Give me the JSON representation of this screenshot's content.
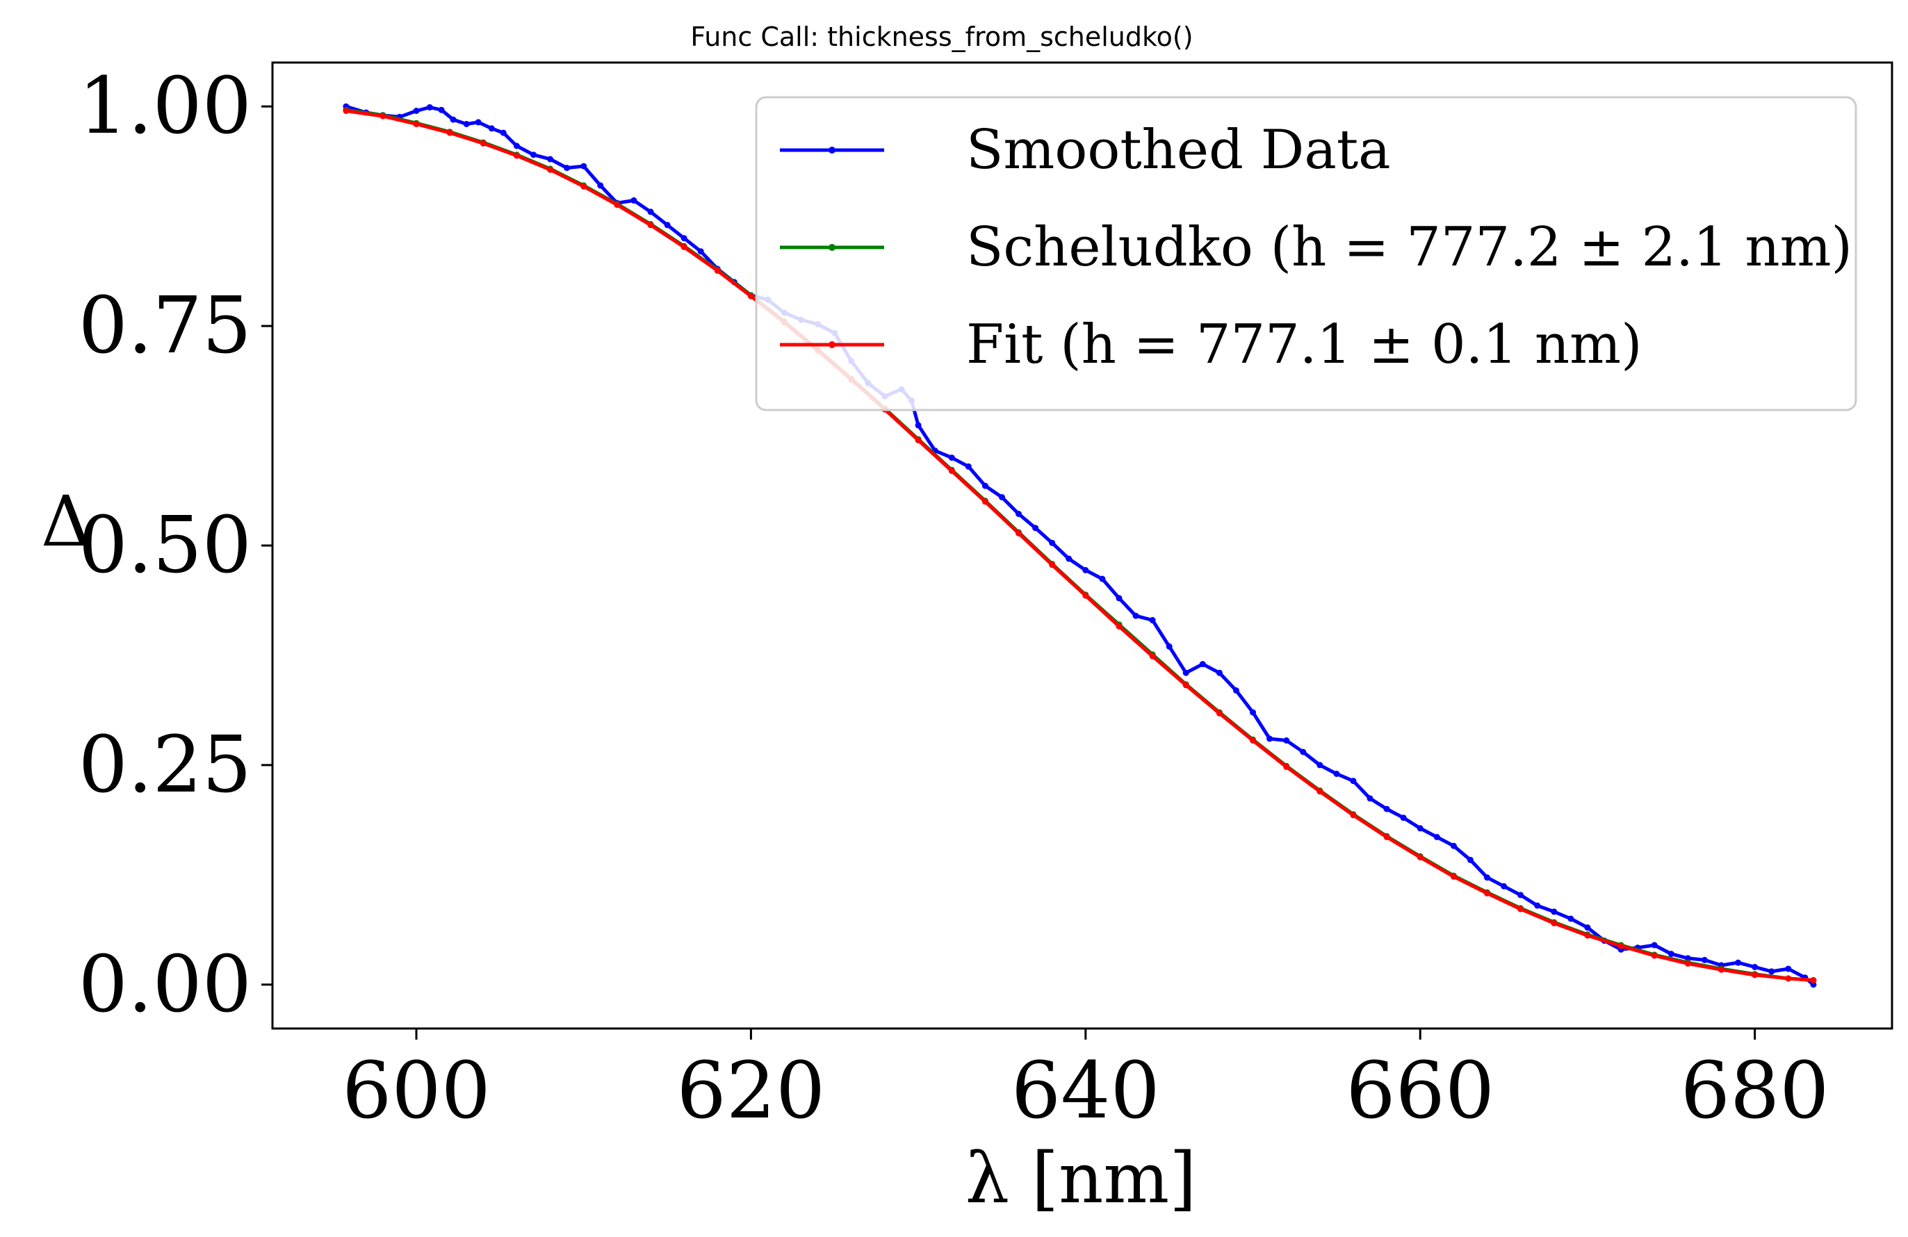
{
  "chart_data": {
    "type": "line",
    "title": "Func Call: thickness_from_scheludko()",
    "xlabel": "λ [nm]",
    "ylabel": "Δ",
    "xlim": [
      591.4,
      688.2
    ],
    "ylim": [
      -0.05,
      1.05
    ],
    "xticks": [
      600,
      620,
      640,
      660,
      680
    ],
    "xtick_labels": [
      "600",
      "620",
      "640",
      "660",
      "680"
    ],
    "yticks": [
      0.0,
      0.25,
      0.5,
      0.75,
      1.0
    ],
    "ytick_labels": [
      "0.00",
      "0.25",
      "0.50",
      "0.75",
      "1.00"
    ],
    "grid": false,
    "legend_position": "top-right",
    "series": [
      {
        "name": "Smoothed Data",
        "color": "#0000ff",
        "x": [
          595.8,
          597.0,
          598.0,
          599.0,
          600.0,
          600.8,
          601.5,
          602.2,
          603.0,
          603.7,
          604.5,
          605.2,
          606.0,
          607.0,
          608.0,
          609.0,
          610.0,
          611.0,
          612.0,
          613.0,
          614.0,
          615.0,
          616.0,
          617.0,
          618.0,
          619.0,
          620.0,
          621.0,
          622.0,
          623.0,
          624.0,
          625.0,
          626.0,
          627.0,
          628.0,
          629.0,
          629.6,
          630.0,
          631.0,
          632.0,
          633.0,
          634.0,
          635.0,
          636.0,
          637.0,
          638.0,
          639.0,
          640.0,
          641.0,
          642.0,
          643.0,
          644.0,
          645.0,
          646.0,
          647.0,
          648.0,
          649.0,
          650.0,
          651.0,
          652.0,
          653.0,
          654.0,
          655.0,
          656.0,
          657.0,
          658.0,
          659.0,
          660.0,
          661.0,
          662.0,
          663.0,
          664.0,
          665.0,
          666.0,
          667.0,
          668.0,
          669.0,
          670.0,
          671.0,
          672.0,
          673.0,
          674.0,
          675.0,
          676.0,
          677.0,
          678.0,
          679.0,
          680.0,
          681.0,
          682.0,
          683.0,
          683.5
        ],
        "values": [
          1.0,
          0.993,
          0.99,
          0.988,
          0.995,
          0.999,
          0.996,
          0.985,
          0.98,
          0.982,
          0.975,
          0.97,
          0.955,
          0.945,
          0.94,
          0.93,
          0.932,
          0.91,
          0.89,
          0.893,
          0.88,
          0.865,
          0.85,
          0.835,
          0.815,
          0.8,
          0.785,
          0.78,
          0.765,
          0.757,
          0.752,
          0.742,
          0.71,
          0.685,
          0.67,
          0.678,
          0.665,
          0.637,
          0.608,
          0.6,
          0.59,
          0.568,
          0.555,
          0.536,
          0.52,
          0.503,
          0.485,
          0.472,
          0.462,
          0.44,
          0.42,
          0.415,
          0.385,
          0.355,
          0.365,
          0.355,
          0.335,
          0.31,
          0.28,
          0.278,
          0.265,
          0.25,
          0.24,
          0.232,
          0.212,
          0.2,
          0.19,
          0.178,
          0.168,
          0.158,
          0.142,
          0.122,
          0.112,
          0.102,
          0.09,
          0.083,
          0.075,
          0.065,
          0.05,
          0.04,
          0.042,
          0.045,
          0.035,
          0.03,
          0.028,
          0.022,
          0.025,
          0.02,
          0.015,
          0.018,
          0.008,
          0.0
        ]
      },
      {
        "name": "Scheludko (h = 777.2 ± 2.1 nm)",
        "color": "#008000",
        "x": [
          595.8,
          598,
          600,
          602,
          604,
          606,
          608,
          610,
          612,
          614,
          616,
          618,
          620,
          622,
          624,
          626,
          628,
          630,
          632,
          634,
          636,
          638,
          640,
          642,
          644,
          646,
          648,
          650,
          652,
          654,
          656,
          658,
          660,
          662,
          664,
          666,
          668,
          670,
          672,
          674,
          676,
          678,
          680,
          682,
          683.5
        ],
        "values": [
          0.996,
          0.99,
          0.981,
          0.971,
          0.959,
          0.945,
          0.929,
          0.91,
          0.889,
          0.866,
          0.841,
          0.814,
          0.785,
          0.755,
          0.723,
          0.69,
          0.656,
          0.621,
          0.586,
          0.551,
          0.515,
          0.479,
          0.444,
          0.41,
          0.376,
          0.342,
          0.31,
          0.279,
          0.249,
          0.221,
          0.194,
          0.169,
          0.146,
          0.124,
          0.105,
          0.087,
          0.071,
          0.057,
          0.045,
          0.034,
          0.025,
          0.018,
          0.012,
          0.007,
          0.005
        ]
      },
      {
        "name": "Fit (h = 777.1 ± 0.1 nm)",
        "color": "#ff0000",
        "x": [
          595.8,
          598,
          600,
          602,
          604,
          606,
          608,
          610,
          612,
          614,
          616,
          618,
          620,
          622,
          624,
          626,
          628,
          630,
          632,
          634,
          636,
          638,
          640,
          642,
          644,
          646,
          648,
          650,
          652,
          654,
          656,
          658,
          660,
          662,
          664,
          666,
          668,
          670,
          672,
          674,
          676,
          678,
          680,
          682,
          683.5
        ],
        "values": [
          0.995,
          0.989,
          0.98,
          0.97,
          0.958,
          0.944,
          0.928,
          0.909,
          0.888,
          0.865,
          0.84,
          0.813,
          0.784,
          0.754,
          0.722,
          0.689,
          0.655,
          0.62,
          0.585,
          0.55,
          0.514,
          0.478,
          0.443,
          0.408,
          0.374,
          0.341,
          0.309,
          0.278,
          0.248,
          0.22,
          0.193,
          0.168,
          0.145,
          0.123,
          0.104,
          0.086,
          0.07,
          0.056,
          0.044,
          0.033,
          0.024,
          0.017,
          0.011,
          0.007,
          0.005
        ]
      }
    ]
  },
  "legend": {
    "entries": [
      {
        "text": "Smoothed Data",
        "color": "#0000ff"
      },
      {
        "text": "Scheludko (h = 777.2 ± 2.1 nm)",
        "color": "#008000"
      },
      {
        "text": "Fit (h = 777.1 ± 0.1 nm)",
        "color": "#ff0000"
      }
    ]
  }
}
